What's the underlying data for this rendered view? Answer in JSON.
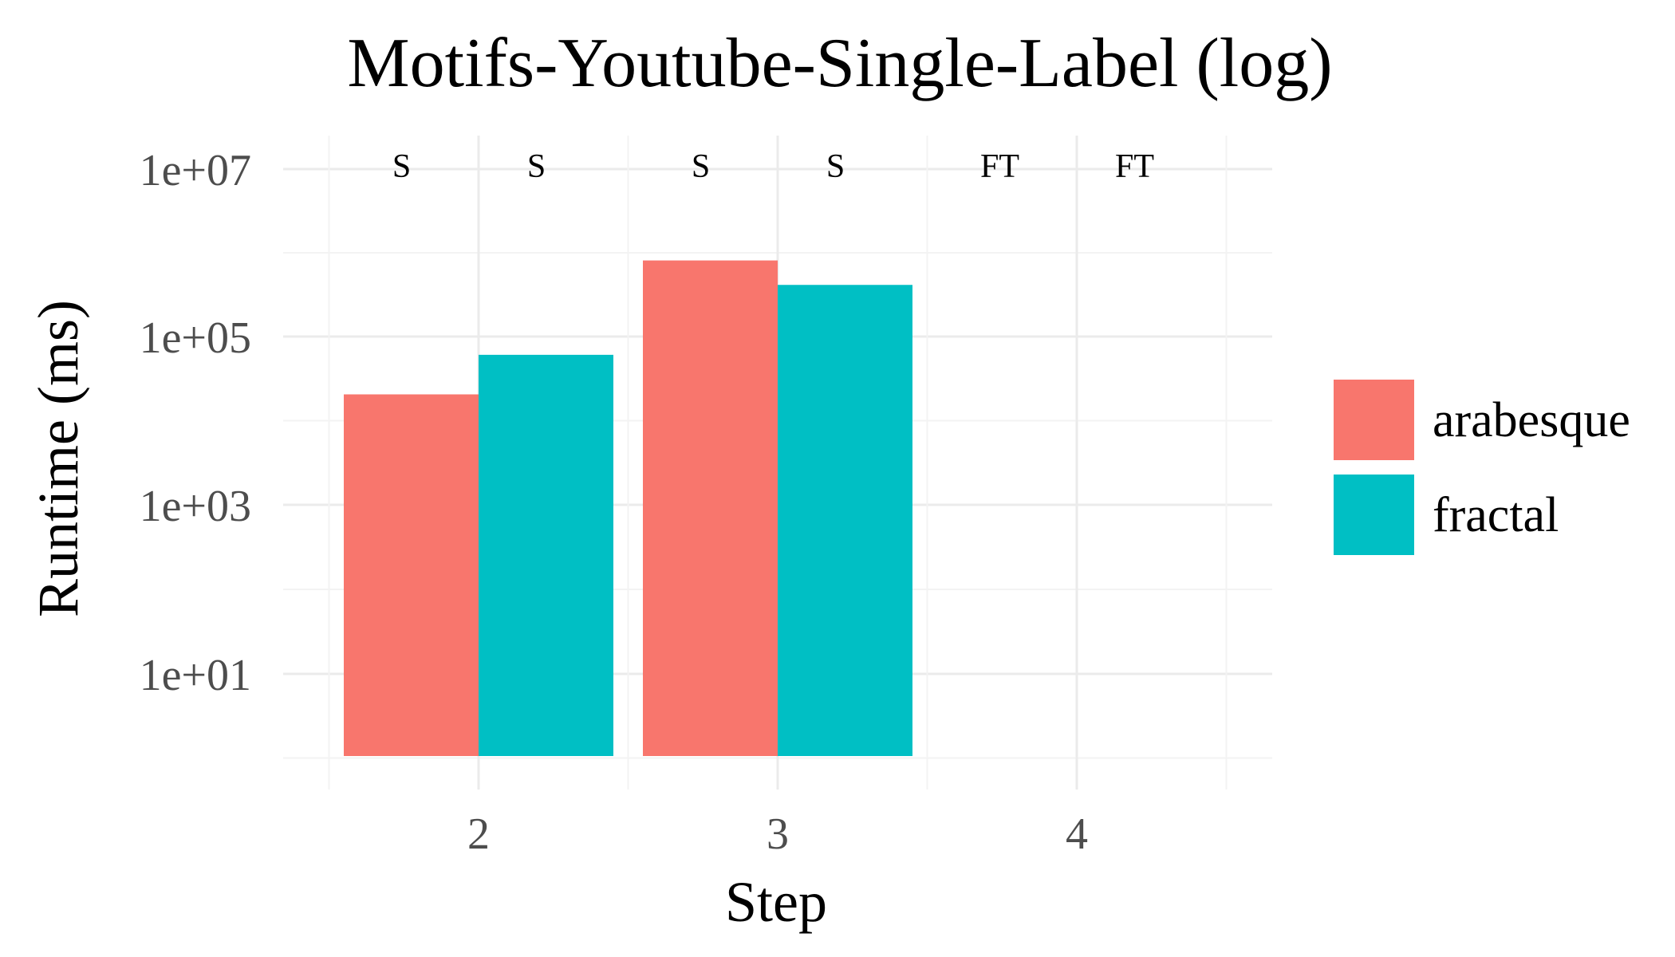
{
  "chart_data": {
    "type": "bar",
    "title": "Motifs-Youtube-Single-Label (log)",
    "xlabel": "Step",
    "ylabel": "Runtime (ms)",
    "y_scale": "log10",
    "ylim": [
      1,
      10000000
    ],
    "yticks": [
      10,
      1000,
      100000,
      10000000
    ],
    "ytick_labels": [
      "1e+01",
      "1e+03",
      "1e+05",
      "1e+07"
    ],
    "categories": [
      "2",
      "3",
      "4"
    ],
    "series": [
      {
        "name": "arabesque",
        "color": "#F8766D",
        "values": [
          21000,
          820000,
          null
        ],
        "status": [
          "S",
          "S",
          "FT"
        ]
      },
      {
        "name": "fractal",
        "color": "#00BFC4",
        "values": [
          62000,
          420000,
          null
        ],
        "status": [
          "S",
          "S",
          "FT"
        ]
      }
    ],
    "grid": true,
    "legend_position": "right"
  }
}
